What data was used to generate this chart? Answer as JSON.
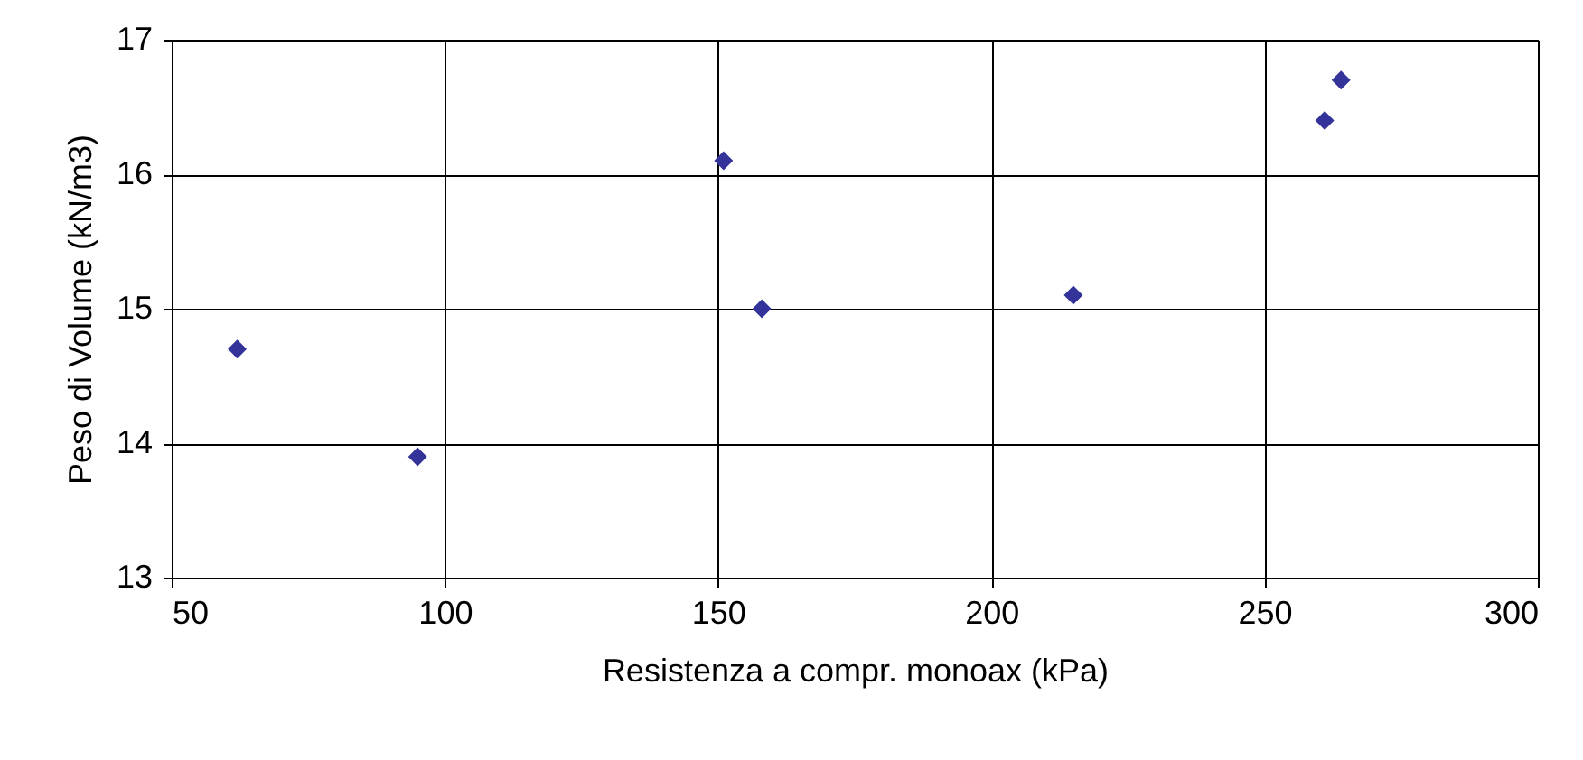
{
  "chart_data": {
    "type": "scatter",
    "xlabel": "Resistenza a compr. monoax (kPa)",
    "ylabel": "Peso di Volume (kN/m3)",
    "x": [
      62,
      95,
      151,
      158,
      215,
      261,
      264
    ],
    "series": [
      {
        "color": "#333399",
        "values": [
          14.7,
          13.9,
          16.1,
          15.0,
          15.1,
          16.4,
          16.7
        ]
      }
    ],
    "xlim": [
      50,
      300
    ],
    "xticks": [
      50,
      100,
      150,
      200,
      250,
      300
    ],
    "ylim": [
      13,
      17
    ],
    "yticks": [
      13,
      14,
      15,
      16,
      17
    ],
    "grid": true,
    "marker": "diamond"
  }
}
